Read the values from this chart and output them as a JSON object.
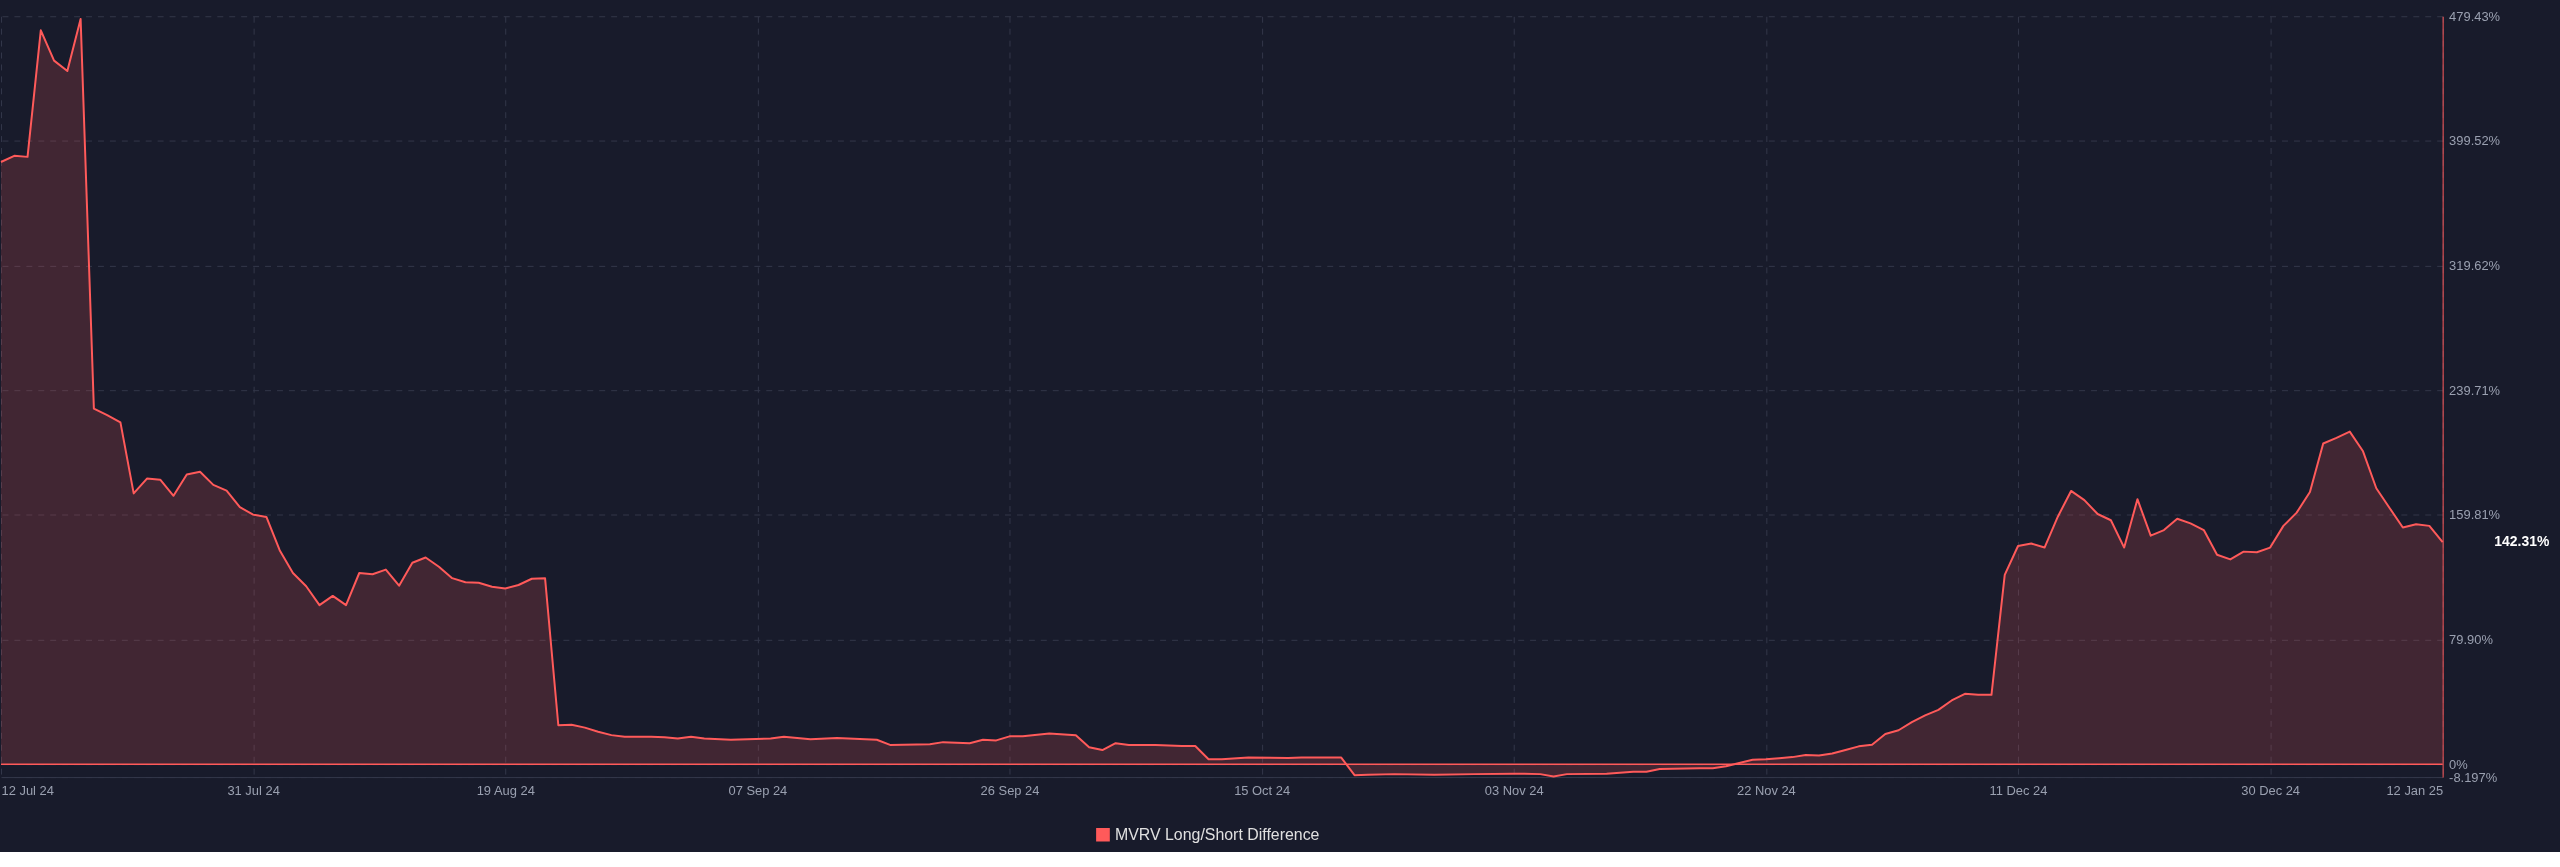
{
  "chart_data": {
    "type": "area",
    "x": [
      "2024-07-12",
      "2024-07-13",
      "2024-07-14",
      "2024-07-15",
      "2024-07-16",
      "2024-07-17",
      "2024-07-18",
      "2024-07-19",
      "2024-07-20",
      "2024-07-21",
      "2024-07-22",
      "2024-07-23",
      "2024-07-24",
      "2024-07-25",
      "2024-07-26",
      "2024-07-27",
      "2024-07-28",
      "2024-07-29",
      "2024-07-30",
      "2024-07-31",
      "2024-08-01",
      "2024-08-02",
      "2024-08-03",
      "2024-08-04",
      "2024-08-05",
      "2024-08-06",
      "2024-08-07",
      "2024-08-08",
      "2024-08-09",
      "2024-08-10",
      "2024-08-11",
      "2024-08-12",
      "2024-08-13",
      "2024-08-14",
      "2024-08-15",
      "2024-08-16",
      "2024-08-17",
      "2024-08-18",
      "2024-08-19",
      "2024-08-20",
      "2024-08-21",
      "2024-08-22",
      "2024-08-23",
      "2024-08-24",
      "2024-08-25",
      "2024-08-26",
      "2024-08-27",
      "2024-08-28",
      "2024-08-30",
      "2024-08-31",
      "2024-09-01",
      "2024-09-02",
      "2024-09-03",
      "2024-09-05",
      "2024-09-08",
      "2024-09-09",
      "2024-09-11",
      "2024-09-13",
      "2024-09-16",
      "2024-09-17",
      "2024-09-20",
      "2024-09-21",
      "2024-09-23",
      "2024-09-24",
      "2024-09-25",
      "2024-09-26",
      "2024-09-27",
      "2024-09-29",
      "2024-10-01",
      "2024-10-02",
      "2024-10-03",
      "2024-10-04",
      "2024-10-05",
      "2024-10-07",
      "2024-10-09",
      "2024-10-10",
      "2024-10-11",
      "2024-10-12",
      "2024-10-14",
      "2024-10-17",
      "2024-10-18",
      "2024-10-21",
      "2024-10-22",
      "2024-10-23",
      "2024-10-25",
      "2024-10-28",
      "2024-10-31",
      "2024-11-03",
      "2024-11-05",
      "2024-11-06",
      "2024-11-07",
      "2024-11-10",
      "2024-11-12",
      "2024-11-13",
      "2024-11-14",
      "2024-11-17",
      "2024-11-18",
      "2024-11-19",
      "2024-11-21",
      "2024-11-22",
      "2024-11-23",
      "2024-11-24",
      "2024-11-25",
      "2024-11-26",
      "2024-11-27",
      "2024-11-28",
      "2024-11-29",
      "2024-11-30",
      "2024-12-01",
      "2024-12-02",
      "2024-12-03",
      "2024-12-04",
      "2024-12-05",
      "2024-12-06",
      "2024-12-07",
      "2024-12-08",
      "2024-12-09",
      "2024-12-10",
      "2024-12-11",
      "2024-12-12",
      "2024-12-13",
      "2024-12-14",
      "2024-12-15",
      "2024-12-16",
      "2024-12-17",
      "2024-12-18",
      "2024-12-19",
      "2024-12-20",
      "2024-12-21",
      "2024-12-22",
      "2024-12-23",
      "2024-12-24",
      "2024-12-25",
      "2024-12-26",
      "2024-12-27",
      "2024-12-28",
      "2024-12-29",
      "2024-12-30",
      "2024-12-31",
      "2025-01-01",
      "2025-01-02",
      "2025-01-03",
      "2025-01-04",
      "2025-01-05",
      "2025-01-06",
      "2025-01-07",
      "2025-01-08",
      "2025-01-09",
      "2025-01-10",
      "2025-01-11",
      "2025-01-12"
    ],
    "series": [
      {
        "name": "MVRV Long/Short Difference",
        "color": "#ff5a5a",
        "values": [
          386.0,
          390.0,
          389.3,
          470.4,
          451.0,
          444.3,
          477.7,
          227.9,
          223.8,
          219.1,
          173.6,
          183.1,
          182.4,
          172.1,
          185.7,
          187.5,
          179.1,
          175.4,
          164.8,
          160.0,
          158.5,
          137.2,
          122.6,
          114.1,
          102.0,
          107.9,
          102.0,
          122.6,
          121.8,
          124.8,
          114.5,
          129.2,
          132.5,
          126.6,
          119.3,
          116.7,
          116.3,
          113.8,
          112.7,
          114.9,
          118.9,
          119.3,
          25.0,
          25.3,
          23.5,
          20.9,
          18.7,
          17.6,
          17.6,
          17.3,
          16.5,
          17.6,
          16.5,
          15.8,
          16.5,
          17.6,
          16.1,
          16.9,
          15.7,
          12.4,
          12.8,
          14.2,
          13.5,
          15.7,
          15.3,
          17.9,
          17.9,
          19.7,
          18.6,
          10.9,
          9.1,
          13.5,
          12.4,
          12.4,
          11.7,
          11.7,
          3.2,
          3.2,
          4.3,
          4.0,
          4.3,
          4.3,
          -7.0,
          -6.7,
          -6.3,
          -6.7,
          -6.3,
          -6.0,
          -6.3,
          -7.8,
          -6.3,
          -6.0,
          -4.8,
          -4.8,
          -3.0,
          -2.6,
          -2.6,
          -1.2,
          2.9,
          3.3,
          3.9,
          4.6,
          5.9,
          5.6,
          6.9,
          9.2,
          11.5,
          12.5,
          19.4,
          21.8,
          27.0,
          31.3,
          34.9,
          40.9,
          45.2,
          44.5,
          44.5,
          121.4,
          139.9,
          141.5,
          138.9,
          158.7,
          175.2,
          169.3,
          160.4,
          156.4,
          138.9,
          169.9,
          146.5,
          150.1,
          157.4,
          154.4,
          150.1,
          134.3,
          131.3,
          136.3,
          135.9,
          138.9,
          152.8,
          161.3,
          174.5,
          205.6,
          209.2,
          213.2,
          200.6,
          176.9,
          164.3,
          151.8,
          153.8,
          152.8,
          142.31
        ]
      }
    ],
    "xlim": [
      "2024-07-12",
      "2025-01-12"
    ],
    "xticks": [
      {
        "value": "2024-07-12",
        "label": "12 Jul 24"
      },
      {
        "value": "2024-07-31",
        "label": "31 Jul 24"
      },
      {
        "value": "2024-08-19",
        "label": "19 Aug 24"
      },
      {
        "value": "2024-09-07",
        "label": "07 Sep 24"
      },
      {
        "value": "2024-09-26",
        "label": "26 Sep 24"
      },
      {
        "value": "2024-10-15",
        "label": "15 Oct 24"
      },
      {
        "value": "2024-11-03",
        "label": "03 Nov 24"
      },
      {
        "value": "2024-11-22",
        "label": "22 Nov 24"
      },
      {
        "value": "2024-12-11",
        "label": "11 Dec 24"
      },
      {
        "value": "2024-12-30",
        "label": "30 Dec 24"
      },
      {
        "value": "2025-01-12",
        "label": "12 Jan 25"
      }
    ],
    "ylim": [
      -8.197,
      479.43
    ],
    "yticks": [
      {
        "value": -8.197,
        "label": "-8.197%"
      },
      {
        "value": 0,
        "label": "0%"
      },
      {
        "value": 79.9,
        "label": "79.90%"
      },
      {
        "value": 159.81,
        "label": "159.81%"
      },
      {
        "value": 239.71,
        "label": "239.71%"
      },
      {
        "value": 319.62,
        "label": "319.62%"
      },
      {
        "value": 399.52,
        "label": "399.52%"
      },
      {
        "value": 479.43,
        "label": "479.43%"
      }
    ],
    "ref_lines": [
      {
        "axis": "y",
        "value": 0,
        "color": "#ff5a5a"
      }
    ],
    "annotations": [
      "142.31%"
    ],
    "grid": true,
    "legend": "bottom"
  }
}
